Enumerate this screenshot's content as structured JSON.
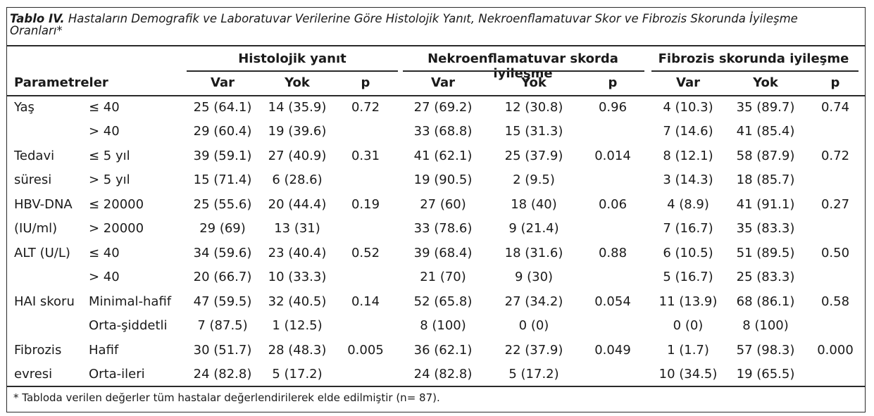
{
  "caption": {
    "label": "Tablo IV.",
    "text": " Hastaların Demografik ve Laboratuvar Verilerine Göre Histolojik Yanıt, Nekroenflamatuvar Skor ve Fibrozis Skorunda İyileşme Oranları*"
  },
  "header": {
    "param": "Parametreler",
    "groups": [
      "Histolojik yanıt",
      "Nekroenflamatuvar skorda iyileşme",
      "Fibrozis skorunda iyileşme"
    ],
    "cols": [
      "Var",
      "Yok",
      "p",
      "Var",
      "Yok",
      "p",
      "Var",
      "Yok",
      "p"
    ]
  },
  "rows": [
    {
      "p1": "Yaş",
      "p2": "≤ 40",
      "v": [
        "25 (64.1)",
        "14 (35.9)",
        "0.72",
        "27 (69.2)",
        "12 (30.8)",
        "0.96",
        "4 (10.3)",
        "35 (89.7)",
        "0.74"
      ]
    },
    {
      "p1": "",
      "p2": "> 40",
      "v": [
        "29 (60.4)",
        "19 (39.6)",
        "",
        "33 (68.8)",
        "15 (31.3)",
        "",
        "7 (14.6)",
        "41 (85.4)",
        ""
      ]
    },
    {
      "p1": "Tedavi",
      "p2": "≤ 5 yıl",
      "v": [
        "39 (59.1)",
        "27 (40.9)",
        "0.31",
        "41 (62.1)",
        "25 (37.9)",
        "0.014",
        "8 (12.1)",
        "58 (87.9)",
        "0.72"
      ]
    },
    {
      "p1": "süresi",
      "p2": "> 5 yıl",
      "v": [
        "15 (71.4)",
        "6 (28.6)",
        "",
        "19 (90.5)",
        "2 (9.5)",
        "",
        "3 (14.3)",
        "18 (85.7)",
        ""
      ]
    },
    {
      "p1": "HBV-DNA",
      "p2": "≤ 20000",
      "v": [
        "25 (55.6)",
        "20 (44.4)",
        "0.19",
        "27 (60)",
        "18 (40)",
        "0.06",
        "4 (8.9)",
        "41 (91.1)",
        "0.27"
      ]
    },
    {
      "p1": "(IU/ml)",
      "p2": "> 20000",
      "v": [
        "29 (69)",
        "13 (31)",
        "",
        "33 (78.6)",
        "9 (21.4)",
        "",
        "7 (16.7)",
        "35 (83.3)",
        ""
      ]
    },
    {
      "p1": "ALT (U/L)",
      "p2": "≤ 40",
      "v": [
        "34 (59.6)",
        "23 (40.4)",
        "0.52",
        "39 (68.4)",
        "18 (31.6)",
        "0.88",
        "6 (10.5)",
        "51 (89.5)",
        "0.50"
      ]
    },
    {
      "p1": "",
      "p2": "> 40",
      "v": [
        "20 (66.7)",
        "10 (33.3)",
        "",
        "21 (70)",
        "9 (30)",
        "",
        "5 (16.7)",
        "25 (83.3)",
        ""
      ]
    },
    {
      "p1": "HAI skoru",
      "p2": "Minimal-hafif",
      "v": [
        "47 (59.5)",
        "32 (40.5)",
        "0.14",
        "52 (65.8)",
        "27 (34.2)",
        "0.054",
        "11 (13.9)",
        "68 (86.1)",
        "0.58"
      ]
    },
    {
      "p1": "",
      "p2": "Orta-şiddetli",
      "v": [
        "7 (87.5)",
        "1 (12.5)",
        "",
        "8 (100)",
        "0 (0)",
        "",
        "0 (0)",
        "8 (100)",
        ""
      ]
    },
    {
      "p1": "Fibrozis",
      "p2": "Hafif",
      "v": [
        "30 (51.7)",
        "28 (48.3)",
        "0.005",
        "36 (62.1)",
        "22 (37.9)",
        "0.049",
        "1 (1.7)",
        "57 (98.3)",
        "0.000"
      ]
    },
    {
      "p1": "evresi",
      "p2": "Orta-ileri",
      "v": [
        "24 (82.8)",
        "5 (17.2)",
        "",
        "24 (82.8)",
        "5 (17.2)",
        "",
        "10 (34.5)",
        "19 (65.5)",
        ""
      ]
    }
  ],
  "footnote": "* Tabloda verilen değerler tüm hastalar değerlendirilerek elde edilmiştir (n= 87)."
}
